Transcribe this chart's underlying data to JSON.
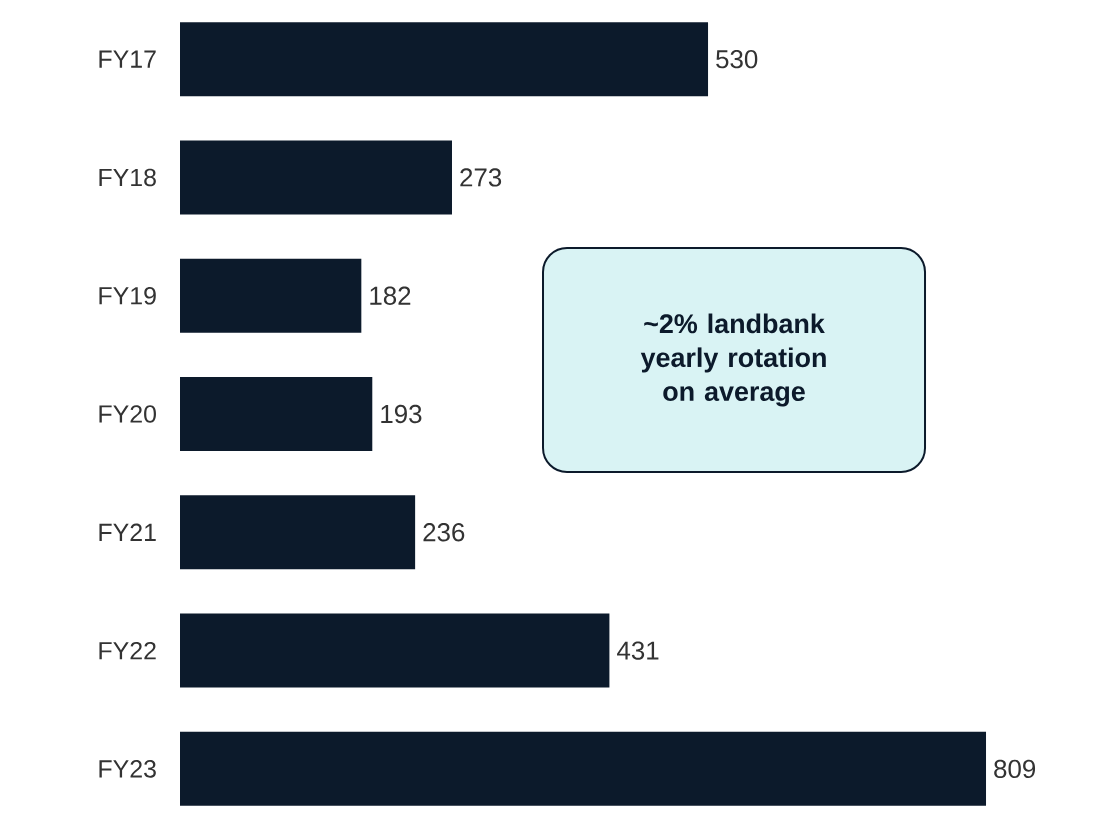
{
  "chart_data": {
    "type": "bar",
    "orientation": "horizontal",
    "categories": [
      "FY17",
      "FY18",
      "FY19",
      "FY20",
      "FY21",
      "FY22",
      "FY23"
    ],
    "values": [
      530,
      273,
      182,
      193,
      236,
      431,
      809
    ],
    "color": "#0c1a2b",
    "data_labels": true,
    "annotations": [
      "~2% landbank yearly rotation on average"
    ]
  }
}
